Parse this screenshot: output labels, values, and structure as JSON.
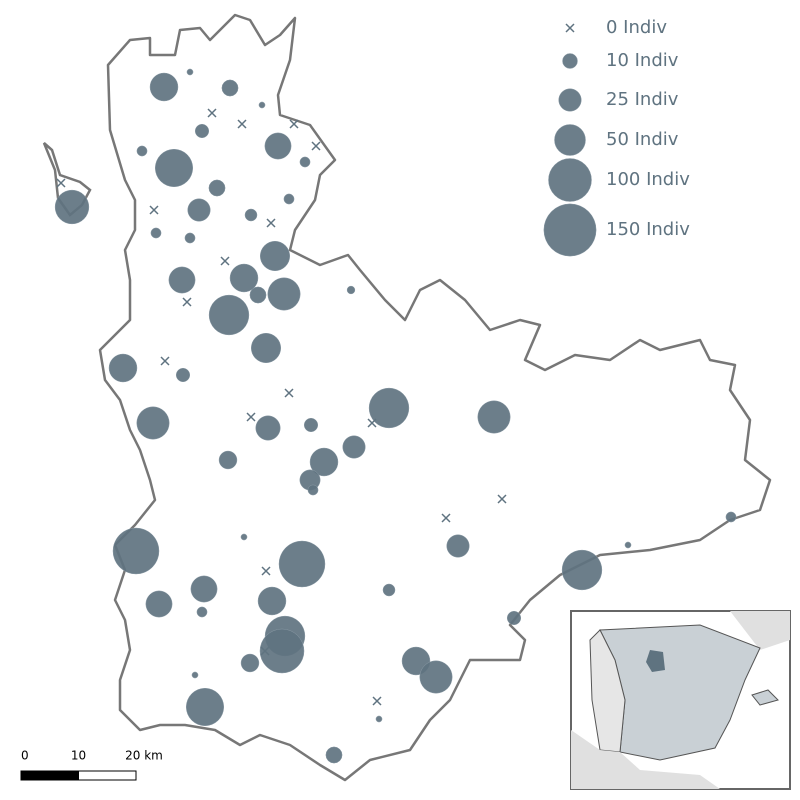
{
  "legend": [
    {
      "value": 0,
      "label": "0 Indiv"
    },
    {
      "value": 10,
      "label": "10 Indiv"
    },
    {
      "value": 25,
      "label": "25 Indiv"
    },
    {
      "value": 50,
      "label": "50 Indiv"
    },
    {
      "value": 100,
      "label": "100 Indiv"
    },
    {
      "value": 150,
      "label": "150 Indiv"
    }
  ],
  "scale_bar": {
    "ticks": [
      0,
      10,
      {
        "value": 20,
        "label": "20 km"
      }
    ]
  },
  "points": [
    40,
    12,
    1,
    1,
    0,
    0,
    0,
    8,
    35,
    0,
    4,
    4,
    75,
    0,
    60,
    12,
    4,
    0,
    25,
    6,
    0,
    4,
    4,
    45,
    0,
    35,
    40,
    12,
    55,
    2,
    0,
    85,
    45,
    40,
    0,
    8,
    0,
    85,
    55,
    55,
    0,
    30,
    8,
    0,
    25,
    15,
    40,
    20,
    4,
    0,
    0,
    4,
    1,
    1,
    25,
    115,
    115,
    0,
    85,
    35,
    6,
    40,
    35,
    4,
    8,
    85,
    105,
    0,
    15,
    40,
    55,
    1,
    0,
    75,
    1,
    12
  ]
}
